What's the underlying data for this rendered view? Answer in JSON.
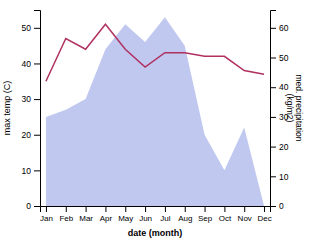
{
  "chart_data": {
    "type": "line",
    "categories": [
      "Jan",
      "Feb",
      "Mar",
      "Apr",
      "May",
      "Jun",
      "Jul",
      "Aug",
      "Sep",
      "Oct",
      "Nov",
      "Dec"
    ],
    "series": [
      {
        "type": "area",
        "color": "#c0c8f0",
        "values": [
          25,
          27,
          30,
          44,
          51,
          46,
          53,
          45,
          20,
          10,
          22,
          0
        ]
      },
      {
        "type": "line",
        "color": "#b03060",
        "values": [
          35,
          47,
          44,
          51,
          44,
          39,
          43,
          43,
          42,
          42,
          38,
          37
        ]
      }
    ],
    "xlabel": "date (month)",
    "ylabel": "max temp (C)",
    "y2label": "med. precipitation\n(kg/m2)",
    "ylim": [
      0,
      55
    ],
    "yticks": [
      0,
      10,
      20,
      30,
      40,
      50
    ],
    "y2lim": [
      0,
      66
    ],
    "y2ticks": [
      0,
      10,
      20,
      30,
      40,
      50,
      60
    ],
    "grid": false
  }
}
